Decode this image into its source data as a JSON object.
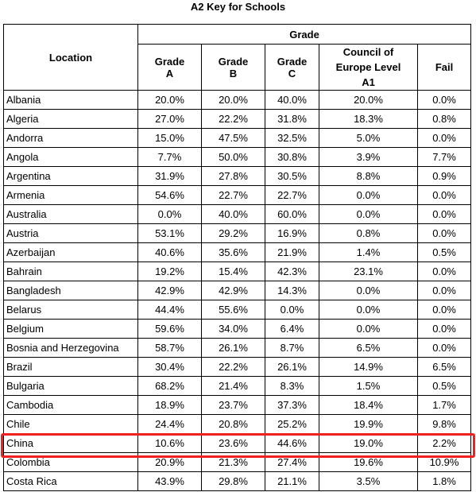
{
  "title": "A2 Key for Schools",
  "table": {
    "location_header": "Location",
    "group_header": "Grade",
    "columns": [
      "Grade A",
      "Grade B",
      "Grade C",
      "Council of Europe Level A1",
      "Fail"
    ],
    "rows": [
      [
        "Albania",
        "20.0%",
        "20.0%",
        "40.0%",
        "20.0%",
        "0.0%"
      ],
      [
        "Algeria",
        "27.0%",
        "22.2%",
        "31.8%",
        "18.3%",
        "0.8%"
      ],
      [
        "Andorra",
        "15.0%",
        "47.5%",
        "32.5%",
        "5.0%",
        "0.0%"
      ],
      [
        "Angola",
        "7.7%",
        "50.0%",
        "30.8%",
        "3.9%",
        "7.7%"
      ],
      [
        "Argentina",
        "31.9%",
        "27.8%",
        "30.5%",
        "8.8%",
        "0.9%"
      ],
      [
        "Armenia",
        "54.6%",
        "22.7%",
        "22.7%",
        "0.0%",
        "0.0%"
      ],
      [
        "Australia",
        "0.0%",
        "40.0%",
        "60.0%",
        "0.0%",
        "0.0%"
      ],
      [
        "Austria",
        "53.1%",
        "29.2%",
        "16.9%",
        "0.8%",
        "0.0%"
      ],
      [
        "Azerbaijan",
        "40.6%",
        "35.6%",
        "21.9%",
        "1.4%",
        "0.5%"
      ],
      [
        "Bahrain",
        "19.2%",
        "15.4%",
        "42.3%",
        "23.1%",
        "0.0%"
      ],
      [
        "Bangladesh",
        "42.9%",
        "42.9%",
        "14.3%",
        "0.0%",
        "0.0%"
      ],
      [
        "Belarus",
        "44.4%",
        "55.6%",
        "0.0%",
        "0.0%",
        "0.0%"
      ],
      [
        "Belgium",
        "59.6%",
        "34.0%",
        "6.4%",
        "0.0%",
        "0.0%"
      ],
      [
        "Bosnia and Herzegovina",
        "58.7%",
        "26.1%",
        "8.7%",
        "6.5%",
        "0.0%"
      ],
      [
        "Brazil",
        "30.4%",
        "22.2%",
        "26.1%",
        "14.9%",
        "6.5%"
      ],
      [
        "Bulgaria",
        "68.2%",
        "21.4%",
        "8.3%",
        "1.5%",
        "0.5%"
      ],
      [
        "Cambodia",
        "18.9%",
        "23.7%",
        "37.3%",
        "18.4%",
        "1.7%"
      ],
      [
        "Chile",
        "24.4%",
        "20.8%",
        "25.2%",
        "19.9%",
        "9.8%"
      ],
      [
        "China",
        "10.6%",
        "23.6%",
        "44.6%",
        "19.0%",
        "2.2%"
      ],
      [
        "Colombia",
        "20.9%",
        "21.3%",
        "27.4%",
        "19.6%",
        "10.9%"
      ],
      [
        "Costa Rica",
        "43.9%",
        "29.8%",
        "21.1%",
        "3.5%",
        "1.8%"
      ]
    ]
  }
}
